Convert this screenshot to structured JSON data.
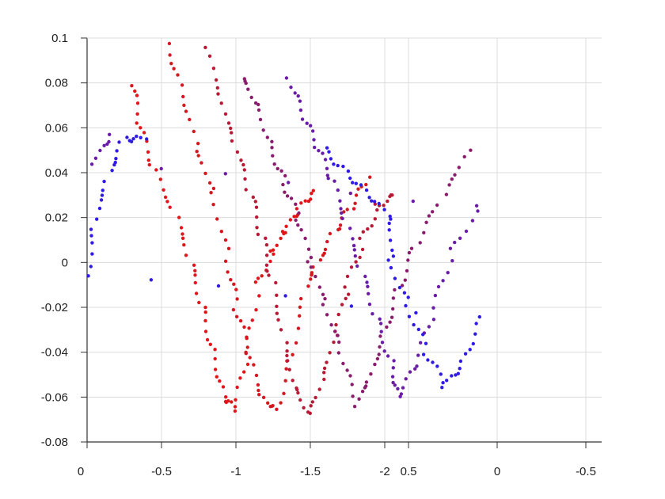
{
  "chart_data": {
    "type": "scatter",
    "title": "",
    "xlabel": "",
    "ylabel": "",
    "ylim": [
      -0.08,
      0.1
    ],
    "y_ticks": [
      "0.1",
      "0.08",
      "0.06",
      "0.04",
      "0.02",
      "0",
      "-0.02",
      "-0.04",
      "-0.06",
      "-0.08"
    ],
    "x_ticks_left": [
      "0",
      "-0.5",
      "-1",
      "-1.5",
      "-2"
    ],
    "x_ticks_right": [
      "0.5",
      "0",
      "-0.5"
    ],
    "grid": true,
    "color_gradient": [
      "#e0161a",
      "#2f1ae6"
    ],
    "series": [
      {
        "color": "#e0161a",
        "points": [
          [
            -0.3,
            0.08
          ],
          [
            -0.35,
            0.06
          ],
          [
            -0.45,
            0.04
          ],
          [
            -0.6,
            0.02
          ],
          [
            -0.7,
            0.0
          ],
          [
            -0.78,
            -0.02
          ],
          [
            -0.85,
            -0.04
          ],
          [
            -0.93,
            -0.06
          ],
          [
            -1.0,
            -0.065
          ],
          [
            -1.08,
            -0.04
          ],
          [
            -1.15,
            -0.01
          ],
          [
            -1.25,
            0.005
          ],
          [
            -1.33,
            0.015
          ],
          [
            -1.42,
            0.024
          ],
          [
            -1.52,
            0.032
          ]
        ]
      },
      {
        "color": "#d4181f",
        "points": [
          [
            -0.55,
            0.097
          ],
          [
            -0.65,
            0.075
          ],
          [
            -0.75,
            0.05
          ],
          [
            -0.85,
            0.03
          ],
          [
            -0.95,
            0.0
          ],
          [
            -1.0,
            -0.02
          ],
          [
            -1.08,
            -0.04
          ],
          [
            -1.16,
            -0.06
          ],
          [
            -1.27,
            -0.066
          ],
          [
            -1.37,
            -0.04
          ],
          [
            -1.47,
            -0.01
          ],
          [
            -1.55,
            0.0
          ],
          [
            -1.67,
            0.014
          ],
          [
            -1.78,
            0.025
          ],
          [
            -1.9,
            0.038
          ]
        ]
      },
      {
        "color": "#b81a35",
        "points": [
          [
            -0.8,
            0.095
          ],
          [
            -0.9,
            0.07
          ],
          [
            -1.0,
            0.05
          ],
          [
            -1.1,
            0.03
          ],
          [
            -1.18,
            0.01
          ],
          [
            -1.25,
            -0.01
          ],
          [
            -1.33,
            -0.035
          ],
          [
            -1.4,
            -0.055
          ],
          [
            -1.5,
            -0.068
          ],
          [
            -1.6,
            -0.05
          ],
          [
            -1.68,
            -0.03
          ],
          [
            -1.75,
            -0.01
          ],
          [
            -1.85,
            0.01
          ],
          [
            -1.95,
            0.025
          ],
          [
            -2.05,
            0.03
          ]
        ]
      },
      {
        "color": "#8a1c6e",
        "points": [
          [
            -1.05,
            0.083
          ],
          [
            -1.15,
            0.07
          ],
          [
            -1.25,
            0.05
          ],
          [
            -1.33,
            0.035
          ],
          [
            -1.42,
            0.02
          ],
          [
            -1.5,
            0.0
          ],
          [
            -1.6,
            -0.02
          ],
          [
            -1.7,
            -0.04
          ],
          [
            -1.8,
            -0.063
          ],
          [
            -1.9,
            -0.05
          ],
          [
            -2.0,
            -0.03
          ],
          [
            0.55,
            -0.01
          ],
          [
            0.45,
            0.01
          ],
          [
            0.3,
            0.03
          ],
          [
            0.15,
            0.05
          ]
        ]
      },
      {
        "color": "#6a1ca8",
        "points": [
          [
            -1.35,
            0.082
          ],
          [
            -1.45,
            0.065
          ],
          [
            -1.55,
            0.05
          ],
          [
            -1.65,
            0.035
          ],
          [
            -1.75,
            0.015
          ],
          [
            -1.85,
            -0.005
          ],
          [
            -1.95,
            -0.025
          ],
          [
            -2.05,
            -0.045
          ],
          [
            0.55,
            -0.06
          ],
          [
            0.45,
            -0.045
          ],
          [
            0.35,
            -0.02
          ],
          [
            0.25,
            0.005
          ],
          [
            0.1,
            0.025
          ],
          [
            -0.05,
            0.045
          ],
          [
            -0.15,
            0.057
          ]
        ]
      },
      {
        "color": "#2f1ae6",
        "points": [
          [
            -1.6,
            0.05
          ],
          [
            -1.75,
            0.04
          ],
          [
            -1.9,
            0.03
          ],
          [
            -2.05,
            0.02
          ],
          [
            0.6,
            0.0
          ],
          [
            0.5,
            -0.02
          ],
          [
            0.4,
            -0.04
          ],
          [
            0.3,
            -0.055
          ],
          [
            0.2,
            -0.045
          ],
          [
            0.1,
            -0.025
          ],
          [
            0.0,
            -0.005
          ],
          [
            -0.05,
            0.02
          ],
          [
            -0.15,
            0.04
          ],
          [
            -0.25,
            0.055
          ],
          [
            -0.4,
            0.055
          ]
        ]
      }
    ]
  }
}
